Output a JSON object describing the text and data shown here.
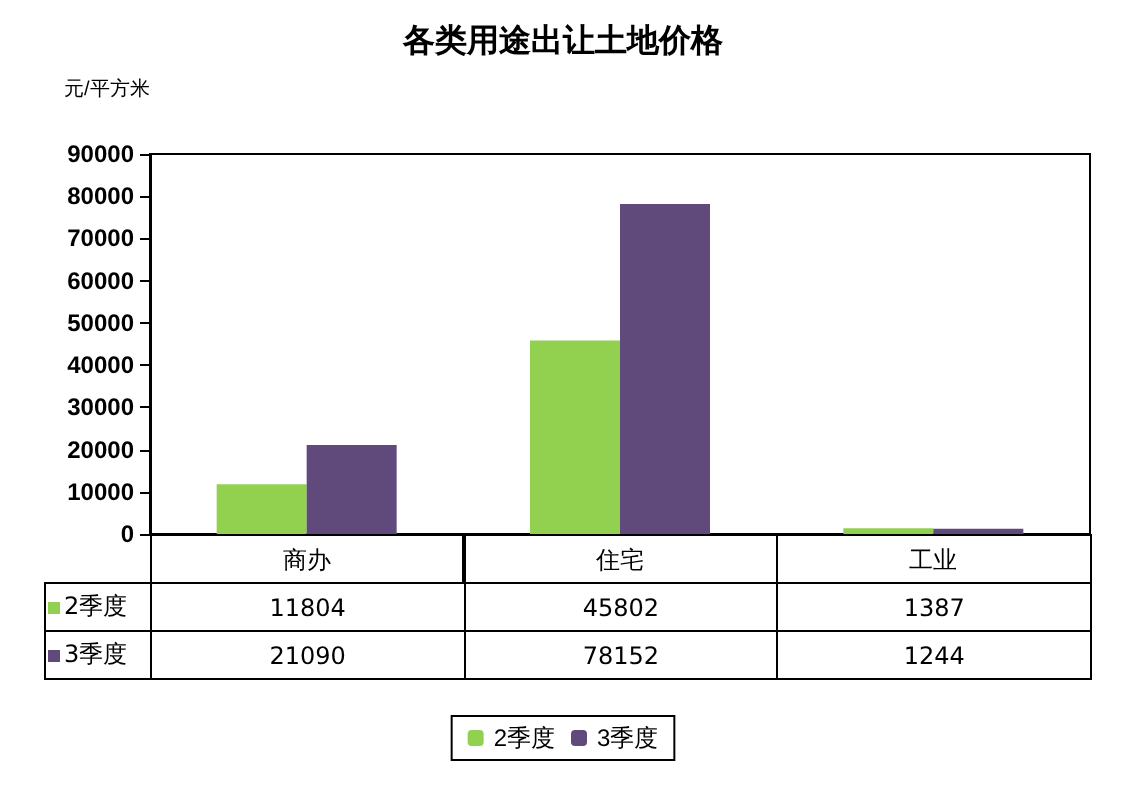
{
  "chart_data": {
    "type": "bar",
    "title": "各类用途出让土地价格",
    "ylabel": "元/平方米",
    "categories": [
      "商办",
      "住宅",
      "工业"
    ],
    "series": [
      {
        "name": "2季度",
        "color": "#92d050",
        "values": [
          11804,
          45802,
          1387
        ]
      },
      {
        "name": "3季度",
        "color": "#604a7b",
        "values": [
          21090,
          78152,
          1244
        ]
      }
    ],
    "ylim": [
      0,
      90000
    ],
    "yticks": [
      0,
      10000,
      20000,
      30000,
      40000,
      50000,
      60000,
      70000,
      80000,
      90000
    ],
    "grid": false,
    "legend": "bottom",
    "data_labels": true
  }
}
